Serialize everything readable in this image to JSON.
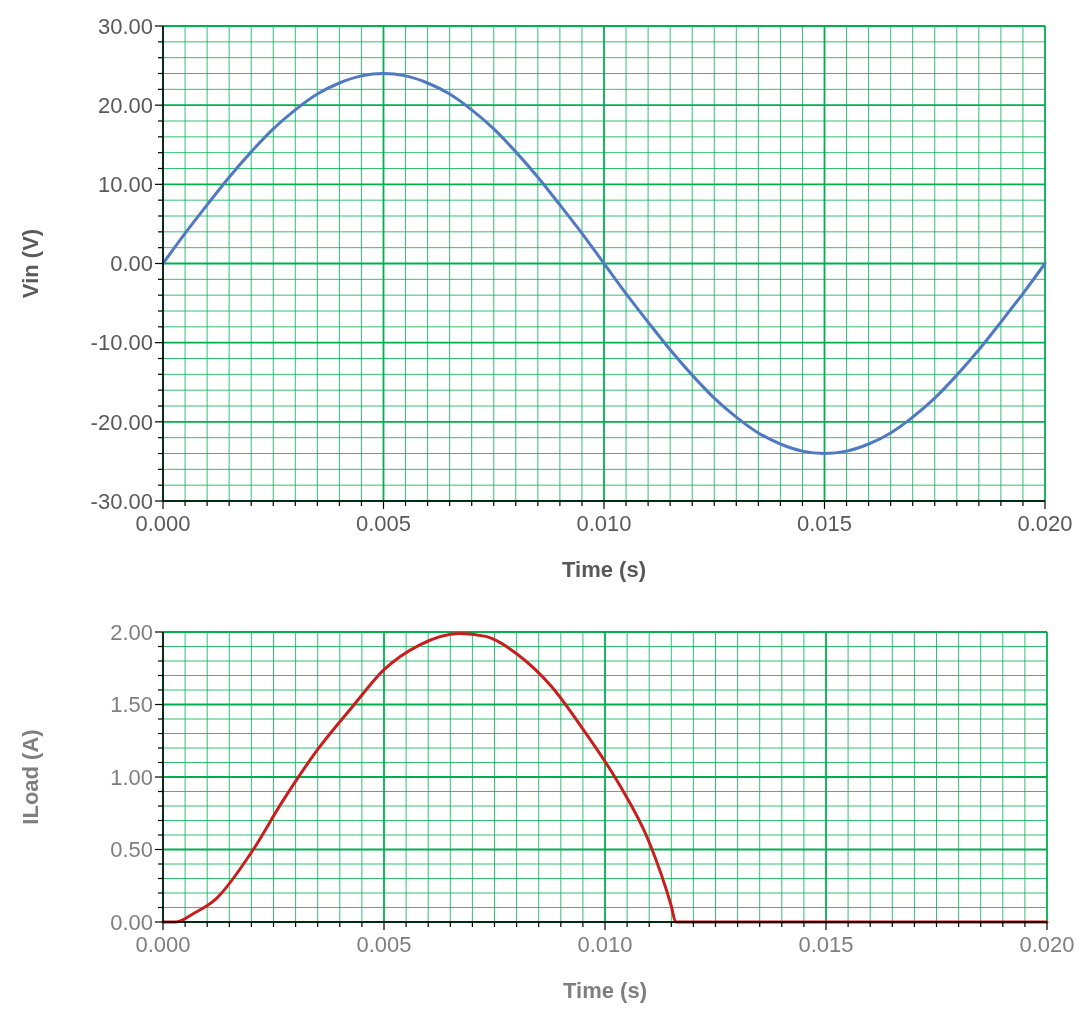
{
  "chart_data": [
    {
      "type": "line",
      "xlabel": "Time (s)",
      "ylabel": "Vin (V)",
      "xlim": [
        0,
        0.02
      ],
      "ylim": [
        -30,
        30
      ],
      "grid": true,
      "marker": "none",
      "line_style": "solid",
      "xticks": [
        {
          "value": 0,
          "label": "0.000"
        },
        {
          "value": 0.0005,
          "label": null
        },
        {
          "value": 0.001,
          "label": null
        },
        {
          "value": 0.0015,
          "label": null
        },
        {
          "value": 0.002,
          "label": null
        },
        {
          "value": 0.0025,
          "label": null
        },
        {
          "value": 0.003,
          "label": null
        },
        {
          "value": 0.0035,
          "label": null
        },
        {
          "value": 0.004,
          "label": null
        },
        {
          "value": 0.0045,
          "label": null
        },
        {
          "value": 0.005,
          "label": "0.005"
        },
        {
          "value": 0.0055,
          "label": null
        },
        {
          "value": 0.006,
          "label": null
        },
        {
          "value": 0.0065,
          "label": null
        },
        {
          "value": 0.007,
          "label": null
        },
        {
          "value": 0.0075,
          "label": null
        },
        {
          "value": 0.008,
          "label": null
        },
        {
          "value": 0.0085,
          "label": null
        },
        {
          "value": 0.009,
          "label": null
        },
        {
          "value": 0.0095,
          "label": null
        },
        {
          "value": 0.01,
          "label": "0.010"
        },
        {
          "value": 0.0105,
          "label": null
        },
        {
          "value": 0.011,
          "label": null
        },
        {
          "value": 0.0115,
          "label": null
        },
        {
          "value": 0.012,
          "label": null
        },
        {
          "value": 0.0125,
          "label": null
        },
        {
          "value": 0.013,
          "label": null
        },
        {
          "value": 0.0135,
          "label": null
        },
        {
          "value": 0.014,
          "label": null
        },
        {
          "value": 0.0145,
          "label": null
        },
        {
          "value": 0.015,
          "label": "0.015"
        },
        {
          "value": 0.0155,
          "label": null
        },
        {
          "value": 0.016,
          "label": null
        },
        {
          "value": 0.0165,
          "label": null
        },
        {
          "value": 0.017,
          "label": null
        },
        {
          "value": 0.0175,
          "label": null
        },
        {
          "value": 0.018,
          "label": null
        },
        {
          "value": 0.0185,
          "label": null
        },
        {
          "value": 0.019,
          "label": null
        },
        {
          "value": 0.0195,
          "label": null
        },
        {
          "value": 0.02,
          "label": "0.020"
        }
      ],
      "yticks": [
        {
          "value": -30,
          "label": "-30.00"
        },
        {
          "value": -28,
          "label": null
        },
        {
          "value": -26,
          "label": null
        },
        {
          "value": -24,
          "label": null
        },
        {
          "value": -22,
          "label": null
        },
        {
          "value": -20,
          "label": "-20.00"
        },
        {
          "value": -18,
          "label": null
        },
        {
          "value": -16,
          "label": null
        },
        {
          "value": -14,
          "label": null
        },
        {
          "value": -12,
          "label": null
        },
        {
          "value": -10,
          "label": "-10.00"
        },
        {
          "value": -8,
          "label": null
        },
        {
          "value": -6,
          "label": null
        },
        {
          "value": -4,
          "label": null
        },
        {
          "value": -2,
          "label": null
        },
        {
          "value": 0,
          "label": "0.00"
        },
        {
          "value": 2,
          "label": null
        },
        {
          "value": 4,
          "label": null
        },
        {
          "value": 6,
          "label": null
        },
        {
          "value": 8,
          "label": null
        },
        {
          "value": 10,
          "label": "10.00"
        },
        {
          "value": 12,
          "label": null
        },
        {
          "value": 14,
          "label": null
        },
        {
          "value": 16,
          "label": null
        },
        {
          "value": 18,
          "label": null
        },
        {
          "value": 20,
          "label": "20.00"
        },
        {
          "value": 22,
          "label": null
        },
        {
          "value": 24,
          "label": null
        },
        {
          "value": 26,
          "label": null
        },
        {
          "value": 28,
          "label": null
        },
        {
          "value": 30,
          "label": "30.00"
        }
      ],
      "series": [
        {
          "color": "#5079c2",
          "x": [
            0,
            0.0005,
            0.001,
            0.0015,
            0.002,
            0.0025,
            0.003,
            0.0035,
            0.004,
            0.0045,
            0.005,
            0.0055,
            0.006,
            0.0065,
            0.007,
            0.0075,
            0.008,
            0.0085,
            0.009,
            0.0095,
            0.01,
            0.0105,
            0.011,
            0.0115,
            0.012,
            0.0125,
            0.013,
            0.0135,
            0.014,
            0.0145,
            0.015,
            0.0155,
            0.016,
            0.0165,
            0.017,
            0.0175,
            0.018,
            0.0185,
            0.019,
            0.0195,
            0.02
          ],
          "values": [
            0,
            3.8,
            7.4,
            10.9,
            14.1,
            17,
            19.4,
            21.4,
            22.8,
            23.7,
            24,
            23.7,
            22.8,
            21.4,
            19.4,
            17,
            14.1,
            10.9,
            7.4,
            3.8,
            0,
            -3.8,
            -7.4,
            -10.9,
            -14.1,
            -17,
            -19.4,
            -21.4,
            -22.8,
            -23.7,
            -24,
            -23.7,
            -22.8,
            -21.4,
            -19.4,
            -17,
            -14.1,
            -10.9,
            -7.4,
            -3.8,
            0
          ]
        }
      ]
    },
    {
      "type": "line",
      "xlabel": "Time (s)",
      "ylabel": "ILoad (A)",
      "xlim": [
        0,
        0.02
      ],
      "ylim": [
        0,
        2
      ],
      "grid": true,
      "marker": "none",
      "line_style": "solid",
      "xticks": [
        {
          "value": 0,
          "label": "0.000"
        },
        {
          "value": 0.0005,
          "label": null
        },
        {
          "value": 0.001,
          "label": null
        },
        {
          "value": 0.0015,
          "label": null
        },
        {
          "value": 0.002,
          "label": null
        },
        {
          "value": 0.0025,
          "label": null
        },
        {
          "value": 0.003,
          "label": null
        },
        {
          "value": 0.0035,
          "label": null
        },
        {
          "value": 0.004,
          "label": null
        },
        {
          "value": 0.0045,
          "label": null
        },
        {
          "value": 0.005,
          "label": "0.005"
        },
        {
          "value": 0.0055,
          "label": null
        },
        {
          "value": 0.006,
          "label": null
        },
        {
          "value": 0.0065,
          "label": null
        },
        {
          "value": 0.007,
          "label": null
        },
        {
          "value": 0.0075,
          "label": null
        },
        {
          "value": 0.008,
          "label": null
        },
        {
          "value": 0.0085,
          "label": null
        },
        {
          "value": 0.009,
          "label": null
        },
        {
          "value": 0.0095,
          "label": null
        },
        {
          "value": 0.01,
          "label": "0.010"
        },
        {
          "value": 0.0105,
          "label": null
        },
        {
          "value": 0.011,
          "label": null
        },
        {
          "value": 0.0115,
          "label": null
        },
        {
          "value": 0.012,
          "label": null
        },
        {
          "value": 0.0125,
          "label": null
        },
        {
          "value": 0.013,
          "label": null
        },
        {
          "value": 0.0135,
          "label": null
        },
        {
          "value": 0.014,
          "label": null
        },
        {
          "value": 0.0145,
          "label": null
        },
        {
          "value": 0.015,
          "label": "0.015"
        },
        {
          "value": 0.0155,
          "label": null
        },
        {
          "value": 0.016,
          "label": null
        },
        {
          "value": 0.0165,
          "label": null
        },
        {
          "value": 0.017,
          "label": null
        },
        {
          "value": 0.0175,
          "label": null
        },
        {
          "value": 0.018,
          "label": null
        },
        {
          "value": 0.0185,
          "label": null
        },
        {
          "value": 0.019,
          "label": null
        },
        {
          "value": 0.0195,
          "label": null
        },
        {
          "value": 0.02,
          "label": "0.020"
        }
      ],
      "yticks": [
        {
          "value": 0,
          "label": "0.00"
        },
        {
          "value": 0.1,
          "label": null
        },
        {
          "value": 0.2,
          "label": null
        },
        {
          "value": 0.3,
          "label": null
        },
        {
          "value": 0.4,
          "label": null
        },
        {
          "value": 0.5,
          "label": "0.50"
        },
        {
          "value": 0.6,
          "label": null
        },
        {
          "value": 0.7,
          "label": null
        },
        {
          "value": 0.8,
          "label": null
        },
        {
          "value": 0.9,
          "label": null
        },
        {
          "value": 1,
          "label": "1.00"
        },
        {
          "value": 1.1,
          "label": null
        },
        {
          "value": 1.2,
          "label": null
        },
        {
          "value": 1.3,
          "label": null
        },
        {
          "value": 1.4,
          "label": null
        },
        {
          "value": 1.5,
          "label": "1.50"
        },
        {
          "value": 1.6,
          "label": null
        },
        {
          "value": 1.7,
          "label": null
        },
        {
          "value": 1.8,
          "label": null
        },
        {
          "value": 1.9,
          "label": null
        },
        {
          "value": 2,
          "label": "2.00"
        }
      ],
      "series": [
        {
          "color": "#c81e1e",
          "x": [
            0,
            0.0003,
            0.0007,
            0.0012,
            0.002,
            0.0027,
            0.0035,
            0.0043,
            0.005,
            0.0058,
            0.0067,
            0.0073,
            0.008,
            0.0088,
            0.0095,
            0.0103,
            0.011,
            0.0115,
            0.0116,
            0.02
          ],
          "values": [
            0,
            0,
            0.06,
            0.16,
            0.48,
            0.83,
            1.19,
            1.49,
            1.74,
            1.91,
            1.99,
            1.97,
            1.85,
            1.62,
            1.33,
            0.96,
            0.55,
            0.11,
            0,
            0
          ]
        }
      ]
    }
  ]
}
